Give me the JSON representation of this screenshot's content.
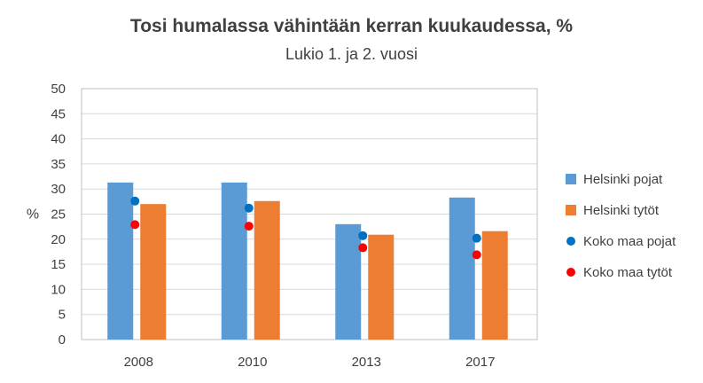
{
  "chart_data": {
    "type": "bar",
    "title": "Tosi humalassa vähintään kerran kuukaudessa, %",
    "subtitle": "Lukio 1. ja 2. vuosi",
    "ylabel": "%",
    "xlabel": "",
    "ylim": [
      0,
      50
    ],
    "yticks": [
      "0",
      "5",
      "10",
      "15",
      "20",
      "25",
      "30",
      "35",
      "40",
      "45",
      "50"
    ],
    "grid": true,
    "legend_position": "right",
    "categories": [
      "2008",
      "2010",
      "2013",
      "2017"
    ],
    "series": [
      {
        "name": "Helsinki pojat",
        "type": "bar",
        "color": "#5B9BD5",
        "values": [
          31.3,
          31.3,
          23.0,
          28.3
        ]
      },
      {
        "name": "Helsinki tytöt",
        "type": "bar",
        "color": "#ED7D31",
        "values": [
          27.0,
          27.6,
          20.9,
          21.6
        ]
      },
      {
        "name": "Koko maa pojat",
        "type": "marker",
        "color": "#0070C0",
        "values": [
          27.6,
          26.2,
          20.7,
          20.2
        ]
      },
      {
        "name": "Koko maa tytöt",
        "type": "marker",
        "color": "#FF0000",
        "values": [
          22.9,
          22.6,
          18.3,
          16.9
        ]
      }
    ]
  }
}
